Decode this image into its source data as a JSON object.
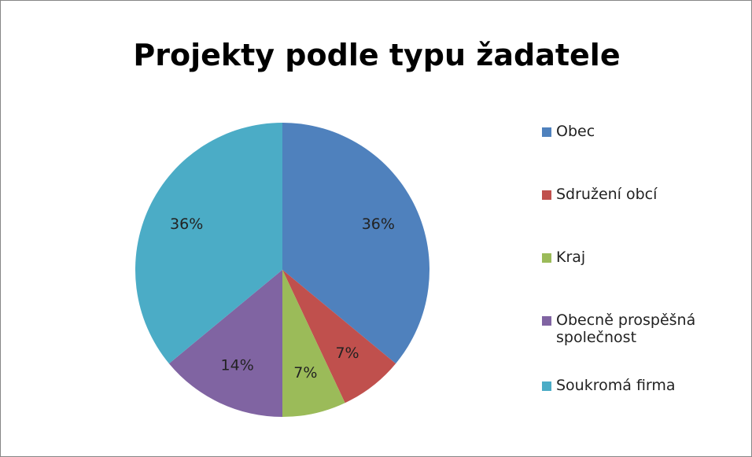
{
  "chart_data": {
    "type": "pie",
    "title": "Projekty podle typu žadatele",
    "categories": [
      "Obec",
      "Sdružení obcí",
      "Kraj",
      "Obecně prospěšná společnost",
      "Soukromá firma"
    ],
    "values": [
      36,
      7,
      7,
      14,
      36
    ],
    "value_labels": [
      "36%",
      "7%",
      "7%",
      "14%",
      "36%"
    ],
    "colors": [
      "#4f81bd",
      "#c0504d",
      "#9bbb59",
      "#8064a2",
      "#4bacc6"
    ],
    "legend": "right"
  }
}
